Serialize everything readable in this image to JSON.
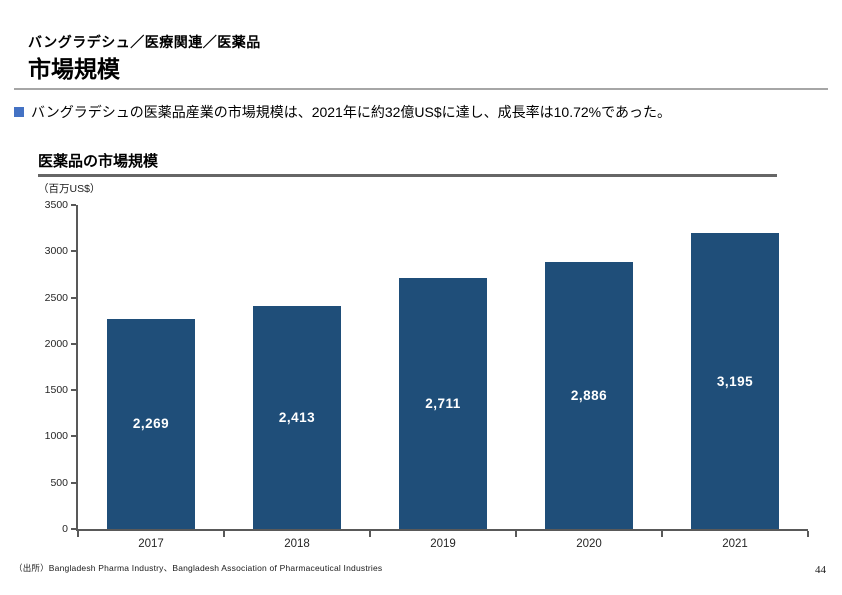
{
  "slide": {
    "breadcrumb": "バングラデシュ／医療関連／医薬品",
    "title": "市場規模",
    "summary": "バングラデシュの医薬品産業の市場規模は、2021年に約32億US$に達し、成長率は10.72%であった。",
    "source": "（出所）Bangladesh Pharma Industry、Bangladesh Association of Pharmaceutical Industries",
    "page_number": "44"
  },
  "chart_data": {
    "type": "bar",
    "title": "医薬品の市場規模",
    "y_unit_label": "（百万US$）",
    "categories": [
      "2017",
      "2018",
      "2019",
      "2020",
      "2021"
    ],
    "values": [
      2269,
      2413,
      2711,
      2886,
      3195
    ],
    "value_labels": [
      "2,269",
      "2,413",
      "2,711",
      "2,886",
      "3,195"
    ],
    "ylim": [
      0,
      3500
    ],
    "yticks": [
      0,
      500,
      1000,
      1500,
      2000,
      2500,
      3000,
      3500
    ],
    "grid": false,
    "legend": false,
    "bar_label_position": "inside-center"
  },
  "colors": {
    "bar": "#1F4E79",
    "bar_value_label": "#FFFFFF",
    "bullet": "#4472C4",
    "axis": "#595959",
    "header_divider": "#A6A6A6",
    "chart_title_underline": "#666666"
  }
}
